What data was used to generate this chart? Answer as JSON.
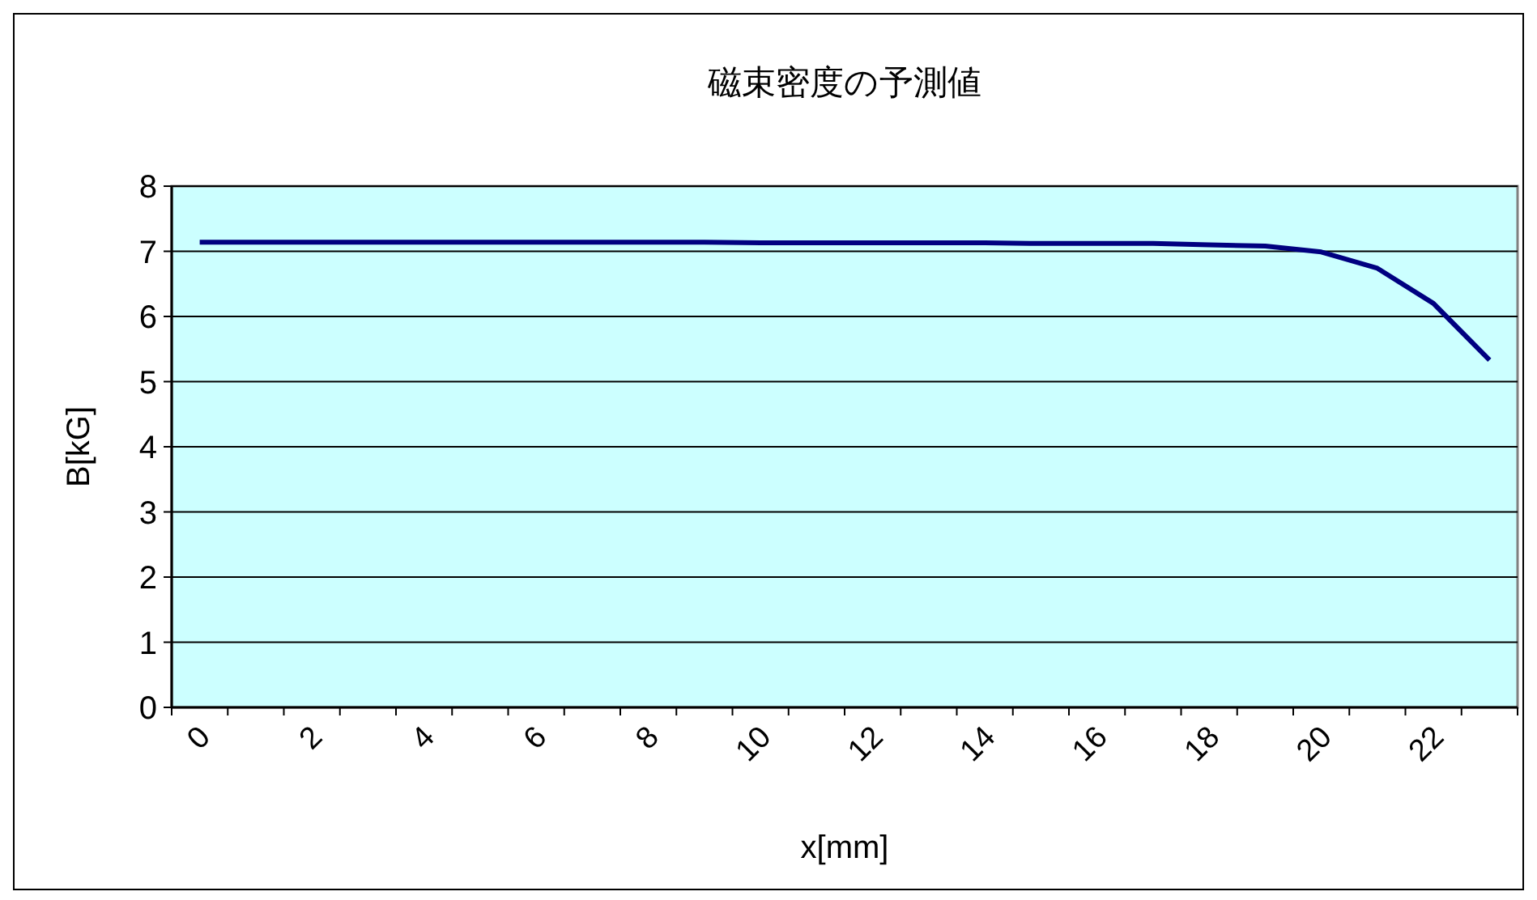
{
  "chart_data": {
    "type": "line",
    "title": "磁束密度の予測値",
    "xlabel": "x[mm]",
    "ylabel": "B[kG]",
    "categories": [
      "0",
      null,
      "2",
      null,
      "4",
      null,
      "6",
      null,
      "8",
      null,
      "10",
      null,
      "12",
      null,
      "14",
      null,
      "16",
      null,
      "18",
      null,
      "20",
      null,
      "22",
      null
    ],
    "series": [
      {
        "color": "#000080",
        "values": [
          7.14,
          7.14,
          7.14,
          7.14,
          7.14,
          7.14,
          7.14,
          7.14,
          7.14,
          7.14,
          7.13,
          7.13,
          7.13,
          7.13,
          7.13,
          7.12,
          7.12,
          7.12,
          7.1,
          7.08,
          6.99,
          6.74,
          6.2,
          5.33
        ]
      }
    ],
    "ylim": [
      0,
      8
    ],
    "yticks": [
      0,
      1,
      2,
      3,
      4,
      5,
      6,
      7,
      8
    ],
    "grid": "y"
  }
}
